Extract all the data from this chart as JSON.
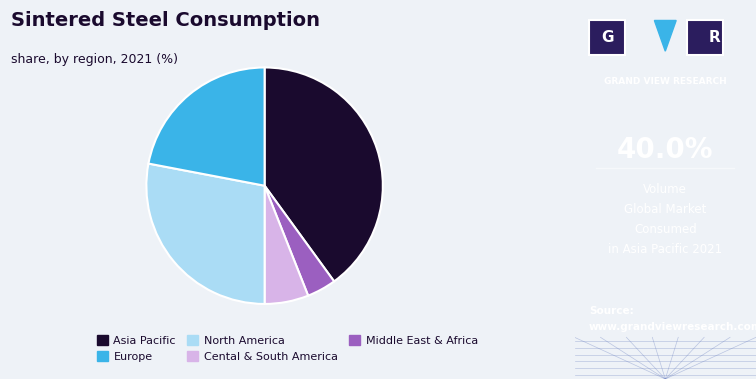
{
  "title": "Sintered Steel Consumption",
  "subtitle": "share, by region, 2021 (%)",
  "slices": [
    {
      "label": "Asia Pacific",
      "value": 40.0,
      "color": "#1a0a2e"
    },
    {
      "label": "Europe",
      "value": 22.0,
      "color": "#3ab4e8"
    },
    {
      "label": "North America",
      "value": 28.0,
      "color": "#aadcf5"
    },
    {
      "label": "Cental & South America",
      "value": 6.0,
      "color": "#d8b4e8"
    },
    {
      "label": "Middle East & Africa",
      "value": 4.0,
      "color": "#9b5fc0"
    }
  ],
  "legend_order": [
    "Asia Pacific",
    "Europe",
    "North America",
    "Cental & South America",
    "Middle East & Africa"
  ],
  "pie_order": [
    "Asia Pacific",
    "Middle East & Africa",
    "Cental & South America",
    "North America",
    "Europe"
  ],
  "sidebar_pct": "40.0%",
  "sidebar_text": "Volume\nGlobal Market\nConsumed\nin Asia Pacific 2021",
  "sidebar_source": "Source:\nwww.grandviewresearch.com",
  "sidebar_bg": "#2b1d5e",
  "main_bg": "#eef2f7",
  "title_color": "#1a0a2e",
  "start_angle": 90,
  "wedge_edge_color": "white"
}
